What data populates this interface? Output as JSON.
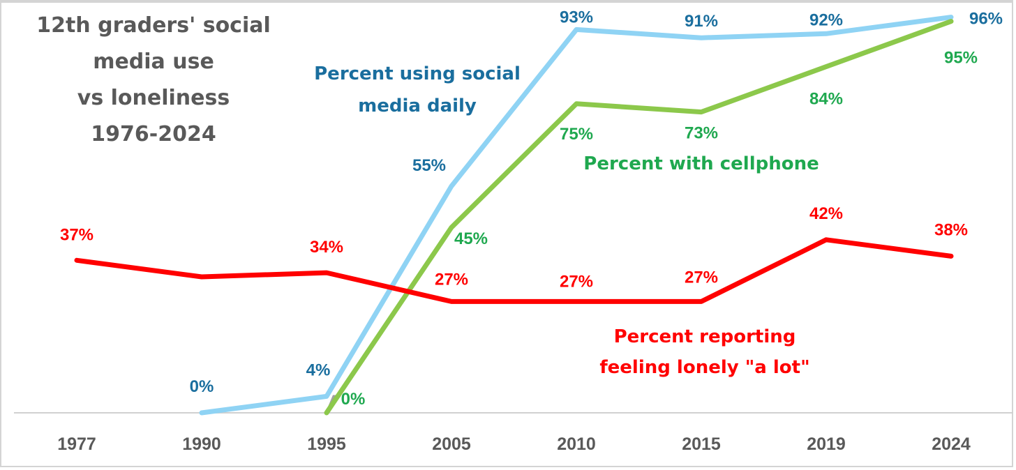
{
  "chart_data": {
    "type": "line",
    "title": [
      "12th graders' social",
      "media use",
      "vs loneliness",
      "1976-2024"
    ],
    "xlabel": "",
    "ylabel": "",
    "ylim": [
      0,
      100
    ],
    "grid": false,
    "legend": "none (series labeled inline)",
    "categories": [
      "1977",
      "1990",
      "1995",
      "2005",
      "2010",
      "2015",
      "2019",
      "2024"
    ],
    "series": [
      {
        "name": "Percent using social media daily",
        "name_lines": [
          "Percent using social",
          "media daily"
        ],
        "color": "#8fd3f4",
        "label_color": "#1a6e9e",
        "values": [
          null,
          0,
          4,
          55,
          93,
          91,
          92,
          96
        ],
        "labels": [
          null,
          "0%",
          "4%",
          "55%",
          "93%",
          "91%",
          "92%",
          "96%"
        ]
      },
      {
        "name": "Percent with cellphone",
        "name_lines": [
          "Percent with cellphone"
        ],
        "color": "#8cc84b",
        "label_color": "#1fa84f",
        "values": [
          null,
          null,
          0,
          45,
          75,
          73,
          84,
          95
        ],
        "labels": [
          null,
          null,
          "0%",
          "45%",
          "75%",
          "73%",
          "84%",
          "95%"
        ]
      },
      {
        "name": "Percent reporting feeling lonely \"a lot\"",
        "name_lines": [
          "Percent reporting",
          "feeling lonely \"a lot\""
        ],
        "color": "#ff0000",
        "label_color": "#ff0000",
        "values": [
          37,
          33,
          34,
          27,
          27,
          27,
          42,
          38
        ],
        "labels": [
          "37%",
          null,
          "34%",
          "27%",
          "27%",
          "27%",
          "42%",
          "38%"
        ]
      }
    ]
  }
}
